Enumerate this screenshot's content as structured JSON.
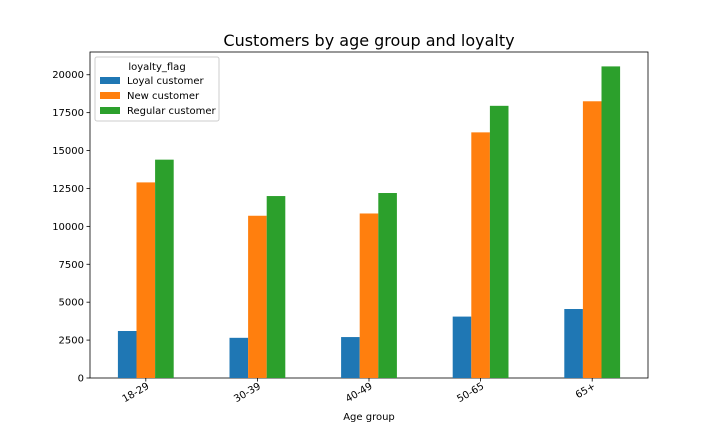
{
  "chart_data": {
    "type": "bar",
    "title": "Customers by age group and loyalty",
    "xlabel": "Age group",
    "ylabel": "",
    "categories": [
      "18-29",
      "30-39",
      "40-49",
      "50-65",
      "65+"
    ],
    "series": [
      {
        "name": "Loyal customer",
        "color": "#1f77b4",
        "values": [
          3100,
          2650,
          2700,
          4050,
          4550
        ]
      },
      {
        "name": "New customer",
        "color": "#ff7f0e",
        "values": [
          12900,
          10700,
          10850,
          16200,
          18250
        ]
      },
      {
        "name": "Regular customer",
        "color": "#2ca02c",
        "values": [
          14400,
          12000,
          12200,
          17950,
          20550
        ]
      }
    ],
    "ylim": [
      0,
      21500
    ],
    "yticks": [
      0,
      2500,
      5000,
      7500,
      10000,
      12500,
      15000,
      17500,
      20000
    ],
    "grid": false,
    "legend": {
      "title": "loyalty_flag",
      "placement": "top-left"
    }
  }
}
